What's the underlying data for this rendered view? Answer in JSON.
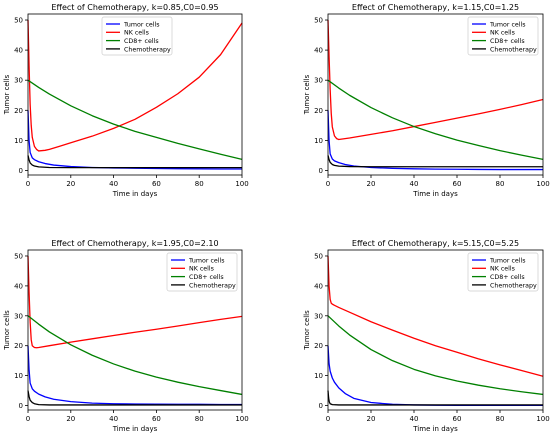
{
  "chart_data": [
    {
      "type": "line",
      "title": "Effect of Chemotherapy, k=0.85,C0=0.95",
      "xlabel": "Time in days",
      "ylabel": "Tumor cells",
      "xlim": [
        0,
        100
      ],
      "ylim": [
        -1.5,
        52
      ],
      "xticks": [
        0,
        20,
        40,
        60,
        80,
        100
      ],
      "yticks": [
        0,
        10,
        20,
        30,
        40,
        50
      ],
      "legend": "top-center",
      "grid": false,
      "series": [
        {
          "name": "Tumor cells",
          "color": "#0000ff",
          "x": [
            0,
            0.5,
            1,
            2,
            3,
            5,
            8,
            12,
            20,
            30,
            40,
            50,
            60,
            70,
            80,
            90,
            100
          ],
          "y": [
            20,
            10,
            6,
            4.2,
            3.6,
            2.9,
            2.3,
            1.8,
            1.3,
            1.0,
            0.85,
            0.75,
            0.65,
            0.6,
            0.55,
            0.5,
            0.5
          ]
        },
        {
          "name": "NK cells",
          "color": "#ff0000",
          "x": [
            0,
            0.5,
            1,
            1.5,
            2,
            3,
            4,
            5,
            8,
            10,
            15,
            20,
            30,
            40,
            50,
            60,
            70,
            80,
            90,
            100
          ],
          "y": [
            50,
            35,
            22,
            15,
            11,
            8,
            7,
            6.5,
            6.7,
            7,
            8.1,
            9.2,
            11.4,
            14,
            17,
            21,
            25.5,
            31,
            38.5,
            49
          ]
        },
        {
          "name": "CD8+ cells",
          "color": "#008000",
          "x": [
            0,
            5,
            10,
            20,
            30,
            40,
            50,
            60,
            70,
            80,
            90,
            100
          ],
          "y": [
            30,
            27.6,
            25.4,
            21.5,
            18.2,
            15.4,
            13,
            11,
            9,
            7.2,
            5.4,
            3.7
          ]
        },
        {
          "name": "Chemotherapy",
          "color": "#000000",
          "x": [
            0,
            0.5,
            1,
            2,
            3,
            5,
            10,
            20,
            40,
            60,
            80,
            100
          ],
          "y": [
            5,
            3.5,
            2.5,
            1.8,
            1.5,
            1.2,
            1.0,
            0.95,
            0.95,
            0.95,
            0.95,
            0.95
          ]
        }
      ]
    },
    {
      "type": "line",
      "title": "Effect of Chemotherapy, k=1.15,C0=1.25",
      "xlabel": "Time in days",
      "ylabel": "Tumor cells",
      "xlim": [
        0,
        100
      ],
      "ylim": [
        -1.5,
        52
      ],
      "xticks": [
        0,
        20,
        40,
        60,
        80,
        100
      ],
      "yticks": [
        0,
        10,
        20,
        30,
        40,
        50
      ],
      "legend": "top-right",
      "grid": false,
      "series": [
        {
          "name": "Tumor cells",
          "color": "#0000ff",
          "x": [
            0,
            0.5,
            1,
            2,
            3,
            5,
            8,
            12,
            20,
            30,
            40,
            50,
            60,
            70,
            80,
            90,
            100
          ],
          "y": [
            20,
            10,
            5.5,
            3.8,
            3.2,
            2.6,
            2.0,
            1.5,
            1.0,
            0.7,
            0.55,
            0.45,
            0.4,
            0.35,
            0.3,
            0.3,
            0.3
          ]
        },
        {
          "name": "NK cells",
          "color": "#ff0000",
          "x": [
            0,
            0.5,
            1,
            1.5,
            2,
            3,
            4,
            5,
            10,
            20,
            30,
            40,
            50,
            60,
            70,
            80,
            90,
            100
          ],
          "y": [
            50,
            38,
            27,
            19,
            14.5,
            11.5,
            10.6,
            10.3,
            10.8,
            12,
            13.2,
            14.6,
            16,
            17.4,
            18.8,
            20.3,
            21.9,
            23.6
          ]
        },
        {
          "name": "CD8+ cells",
          "color": "#008000",
          "x": [
            0,
            5,
            10,
            20,
            30,
            40,
            50,
            60,
            70,
            80,
            90,
            100
          ],
          "y": [
            30,
            27.4,
            25,
            20.9,
            17.5,
            14.6,
            12.2,
            10.1,
            8.3,
            6.6,
            5.1,
            3.7
          ]
        },
        {
          "name": "Chemotherapy",
          "color": "#000000",
          "x": [
            0,
            0.5,
            1,
            2,
            3,
            5,
            10,
            20,
            40,
            60,
            80,
            100
          ],
          "y": [
            5,
            3.6,
            2.7,
            2.0,
            1.7,
            1.45,
            1.3,
            1.25,
            1.25,
            1.25,
            1.25,
            1.25
          ]
        }
      ]
    },
    {
      "type": "line",
      "title": "Effect of Chemotherapy, k=1.95,C0=2.10",
      "xlabel": "Time in days",
      "ylabel": "Tumor cells",
      "xlim": [
        0,
        100
      ],
      "ylim": [
        -1.5,
        52
      ],
      "xticks": [
        0,
        20,
        40,
        60,
        80,
        100
      ],
      "yticks": [
        0,
        10,
        20,
        30,
        40,
        50
      ],
      "legend": "top-right",
      "grid": false,
      "series": [
        {
          "name": "Tumor cells",
          "color": "#0000ff",
          "x": [
            0,
            0.5,
            1,
            2,
            3,
            5,
            8,
            12,
            20,
            30,
            40,
            50,
            60,
            70,
            80,
            90,
            100
          ],
          "y": [
            20,
            12,
            7.5,
            5.6,
            4.8,
            3.8,
            2.9,
            2.1,
            1.3,
            0.8,
            0.6,
            0.5,
            0.45,
            0.4,
            0.4,
            0.35,
            0.35
          ]
        },
        {
          "name": "NK cells",
          "color": "#ff0000",
          "x": [
            0,
            0.5,
            1,
            1.5,
            2,
            3,
            4,
            5,
            10,
            20,
            30,
            40,
            50,
            60,
            70,
            80,
            90,
            100
          ],
          "y": [
            50,
            38,
            28,
            22,
            20,
            19.4,
            19.3,
            19.4,
            20,
            21.2,
            22.3,
            23.4,
            24.5,
            25.5,
            26.6,
            27.7,
            28.8,
            29.8
          ]
        },
        {
          "name": "CD8+ cells",
          "color": "#008000",
          "x": [
            0,
            5,
            10,
            20,
            30,
            40,
            50,
            60,
            70,
            80,
            90,
            100
          ],
          "y": [
            30,
            27.2,
            24.6,
            20.3,
            16.8,
            13.9,
            11.5,
            9.5,
            7.8,
            6.3,
            5,
            3.7
          ]
        },
        {
          "name": "Chemotherapy",
          "color": "#000000",
          "x": [
            0,
            0.5,
            1,
            2,
            3,
            5,
            10,
            20,
            40,
            60,
            80,
            100
          ],
          "y": [
            5,
            3,
            1.8,
            1.0,
            0.6,
            0.3,
            0.2,
            0.2,
            0.2,
            0.2,
            0.2,
            0.2
          ]
        }
      ]
    },
    {
      "type": "line",
      "title": "Effect of Chemotherapy, k=5.15,C0=5.25",
      "xlabel": "Time in days",
      "ylabel": "Tumor cells",
      "xlim": [
        0,
        100
      ],
      "ylim": [
        -1.5,
        52
      ],
      "xticks": [
        0,
        20,
        40,
        60,
        80,
        100
      ],
      "yticks": [
        0,
        10,
        20,
        30,
        40,
        50
      ],
      "legend": "top-right",
      "grid": false,
      "series": [
        {
          "name": "Tumor cells",
          "color": "#0000ff",
          "x": [
            0,
            0.5,
            1,
            2,
            3,
            5,
            8,
            12,
            20,
            30,
            40,
            50,
            60,
            70,
            80,
            90,
            100
          ],
          "y": [
            20,
            14,
            11.5,
            9.2,
            7.8,
            5.9,
            4.0,
            2.4,
            1.0,
            0.4,
            0.2,
            0.1,
            0.05,
            0.05,
            0.05,
            0.05,
            0.05
          ]
        },
        {
          "name": "NK cells",
          "color": "#ff0000",
          "x": [
            0,
            0.5,
            1,
            1.5,
            2,
            3,
            5,
            10,
            20,
            30,
            40,
            50,
            60,
            70,
            80,
            90,
            100
          ],
          "y": [
            50,
            40,
            35.5,
            34.2,
            33.9,
            33.5,
            32.8,
            31.2,
            28,
            25.2,
            22.5,
            20,
            17.8,
            15.6,
            13.6,
            11.7,
            9.8
          ]
        },
        {
          "name": "CD8+ cells",
          "color": "#008000",
          "x": [
            0,
            5,
            10,
            20,
            30,
            40,
            50,
            60,
            70,
            80,
            90,
            100
          ],
          "y": [
            30,
            26.6,
            23.6,
            18.7,
            15,
            12.1,
            9.9,
            8.2,
            6.8,
            5.6,
            4.6,
            3.7
          ]
        },
        {
          "name": "Chemotherapy",
          "color": "#000000",
          "x": [
            0,
            0.3,
            0.6,
            1,
            2,
            5,
            10,
            20,
            40,
            60,
            80,
            100
          ],
          "y": [
            5,
            2.5,
            1.2,
            0.6,
            0.3,
            0.2,
            0.2,
            0.2,
            0.2,
            0.2,
            0.2,
            0.2
          ]
        }
      ]
    }
  ]
}
